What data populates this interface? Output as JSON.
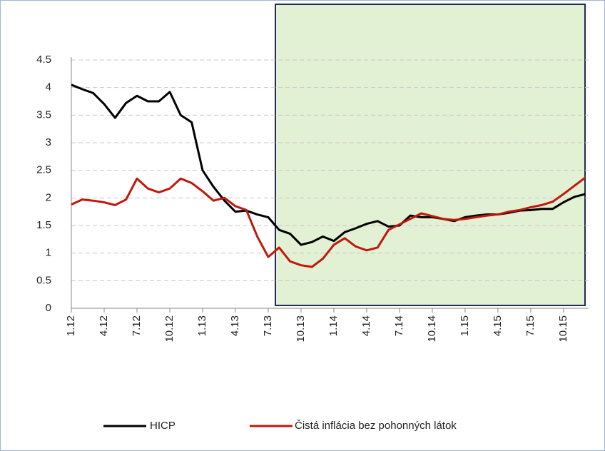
{
  "chart_data": {
    "type": "line",
    "categories": [
      "1.12",
      null,
      null,
      "4.12",
      null,
      null,
      "7.12",
      null,
      null,
      "10.12",
      null,
      null,
      "1.13",
      null,
      null,
      "4.13",
      null,
      null,
      "7.13",
      null,
      null,
      "10.13",
      null,
      null,
      "1.14",
      null,
      null,
      "4.14",
      null,
      null,
      "7.14",
      null,
      null,
      "10.14",
      null,
      null,
      "1.15",
      null,
      null,
      "4.15",
      null,
      null,
      "7.15",
      null,
      null,
      "10.15",
      null,
      null
    ],
    "series": [
      {
        "name": "HICP",
        "color": "#000000",
        "values": [
          4.05,
          3.97,
          3.9,
          3.7,
          3.45,
          3.72,
          3.85,
          3.75,
          3.75,
          3.92,
          3.5,
          3.37,
          2.5,
          2.2,
          1.95,
          1.75,
          1.77,
          1.7,
          1.65,
          1.42,
          1.35,
          1.15,
          1.2,
          1.3,
          1.22,
          1.38,
          1.45,
          1.53,
          1.58,
          1.48,
          1.5,
          1.68,
          1.65,
          1.65,
          1.62,
          1.58,
          1.65,
          1.68,
          1.7,
          1.7,
          1.73,
          1.77,
          1.78,
          1.8,
          1.8,
          1.92,
          2.02,
          2.07
        ]
      },
      {
        "name": "Čistá inflácia bez pohonných látok",
        "color": "#c0180c",
        "values": [
          1.88,
          1.97,
          1.95,
          1.92,
          1.87,
          1.97,
          2.35,
          2.17,
          2.1,
          2.17,
          2.35,
          2.27,
          2.12,
          1.95,
          2.0,
          1.85,
          1.78,
          1.3,
          0.93,
          1.1,
          0.85,
          0.78,
          0.75,
          0.9,
          1.15,
          1.27,
          1.12,
          1.05,
          1.1,
          1.42,
          1.52,
          1.62,
          1.72,
          1.67,
          1.62,
          1.6,
          1.62,
          1.65,
          1.68,
          1.7,
          1.75,
          1.78,
          1.83,
          1.87,
          1.93,
          2.07,
          2.22,
          2.37
        ]
      }
    ],
    "ylim": [
      0,
      4.5
    ],
    "yticks": [
      0,
      0.5,
      1,
      1.5,
      2,
      2.5,
      3,
      3.5,
      4,
      4.5
    ],
    "grid": true,
    "legend": "bottom"
  }
}
